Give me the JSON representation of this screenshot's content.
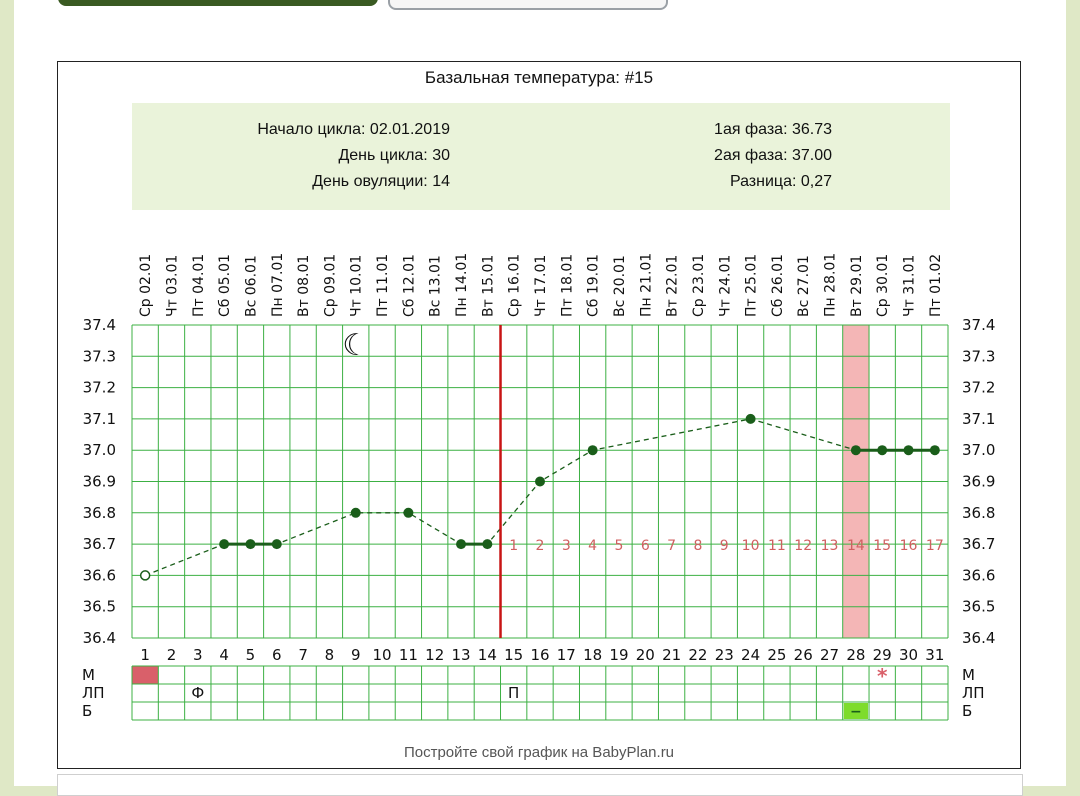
{
  "chart_data": {
    "type": "line",
    "title": "Базальная температура: #15",
    "info": {
      "cycle_start": "Начало цикла: 02.01.2019",
      "cycle_day": "День цикла: 30",
      "ovulation_day": "День овуляции: 14",
      "phase1": "1ая фаза: 36.73",
      "phase2": "2ая фаза: 37.00",
      "difference": "Разница: 0,27"
    },
    "dates": [
      "Ср 02.01",
      "Чт 03.01",
      "Пт 04.01",
      "Сб 05.01",
      "Вс 06.01",
      "Пн 07.01",
      "Вт 08.01",
      "Ср 09.01",
      "Чт 10.01",
      "Пт 11.01",
      "Сб 12.01",
      "Вс 13.01",
      "Пн 14.01",
      "Вт 15.01",
      "Ср 16.01",
      "Чт 17.01",
      "Пт 18.01",
      "Сб 19.01",
      "Вс 20.01",
      "Пн 21.01",
      "Вт 22.01",
      "Ср 23.01",
      "Чт 24.01",
      "Пт 25.01",
      "Сб 26.01",
      "Вс 27.01",
      "Пн 28.01",
      "Вт 29.01",
      "Ср 30.01",
      "Чт 31.01",
      "Пт 01.02"
    ],
    "days": [
      "1",
      "2",
      "3",
      "4",
      "5",
      "6",
      "7",
      "8",
      "9",
      "10",
      "11",
      "12",
      "13",
      "14",
      "15",
      "16",
      "17",
      "18",
      "19",
      "20",
      "21",
      "22",
      "23",
      "24",
      "25",
      "26",
      "27",
      "28",
      "29",
      "30",
      "31"
    ],
    "ylim": [
      36.4,
      37.4
    ],
    "yticks": [
      "37.4",
      "37.3",
      "37.2",
      "37.1",
      "37.0",
      "36.9",
      "36.8",
      "36.7",
      "36.6",
      "36.5",
      "36.4"
    ],
    "points": [
      {
        "day": 1,
        "temp": 36.6,
        "hollow": true
      },
      {
        "day": 4,
        "temp": 36.7
      },
      {
        "day": 5,
        "temp": 36.7
      },
      {
        "day": 6,
        "temp": 36.7
      },
      {
        "day": 9,
        "temp": 36.8
      },
      {
        "day": 11,
        "temp": 36.8
      },
      {
        "day": 13,
        "temp": 36.7
      },
      {
        "day": 14,
        "temp": 36.7
      },
      {
        "day": 16,
        "temp": 36.9
      },
      {
        "day": 18,
        "temp": 37.0
      },
      {
        "day": 24,
        "temp": 37.1
      },
      {
        "day": 28,
        "temp": 37.0
      },
      {
        "day": 29,
        "temp": 37.0
      },
      {
        "day": 30,
        "temp": 37.0
      },
      {
        "day": 31,
        "temp": 37.0
      }
    ],
    "solid_segments": [
      [
        4,
        6
      ],
      [
        13,
        14
      ],
      [
        28,
        31
      ]
    ],
    "ovulation_line_day": 14,
    "highlight_day": 28,
    "dpo_labels": [
      "1",
      "2",
      "3",
      "4",
      "5",
      "6",
      "7",
      "8",
      "9",
      "10",
      "11",
      "12",
      "13",
      "14",
      "15",
      "16",
      "17"
    ],
    "dpo_temp": 36.7,
    "moon_icon": {
      "day": 9,
      "symbol": "☾"
    },
    "bottom_rows": {
      "labels": [
        "М",
        "ЛП",
        "Б"
      ],
      "menses_days": [
        1
      ],
      "star_day": 29,
      "star_symbol": "*",
      "lp_marks": [
        {
          "day": 3,
          "text": "Ф"
        },
        {
          "day": 15,
          "text": "П"
        }
      ],
      "test_day": 28,
      "test_symbol": "−"
    },
    "colors": {
      "grid": "#3cb043",
      "line": "#1a5e1a",
      "ovulation": "#c81414",
      "highlight": "#f4b6b6",
      "menses": "#d9606a",
      "test": "#7edc2c",
      "dpo": "#d06060"
    },
    "footer": "Постройте свой график на BabyPlan.ru"
  }
}
